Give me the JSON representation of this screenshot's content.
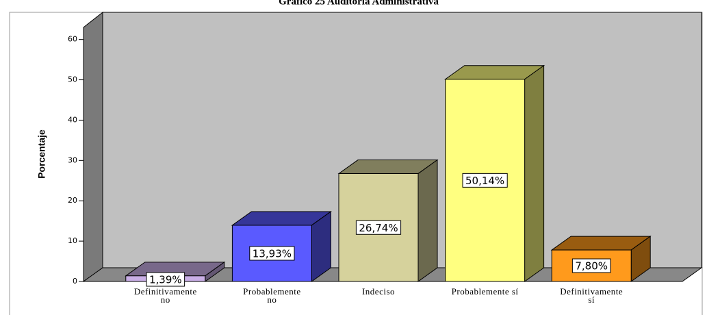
{
  "chart_data": {
    "type": "bar3d",
    "title": "Gráfico 25 Auditoría Administrativa",
    "ylabel": "Porcentaje",
    "categories": [
      "Definitivamente\nno",
      "Probablemente\nno",
      "Indeciso",
      "Probablemente sí",
      "Definitivamente\nsí"
    ],
    "values": [
      1.39,
      13.93,
      26.74,
      50.14,
      7.8
    ],
    "value_labels": [
      "1,39%",
      "13,93%",
      "26,74%",
      "50,14%",
      "7,80%"
    ],
    "colors": [
      "#c9aee6",
      "#5a5aff",
      "#d6d29c",
      "#ffff80",
      "#ff9a1c"
    ],
    "ylim": [
      0,
      63
    ],
    "yticks": [
      0,
      10,
      20,
      30,
      40,
      50,
      60
    ],
    "grid": false
  }
}
